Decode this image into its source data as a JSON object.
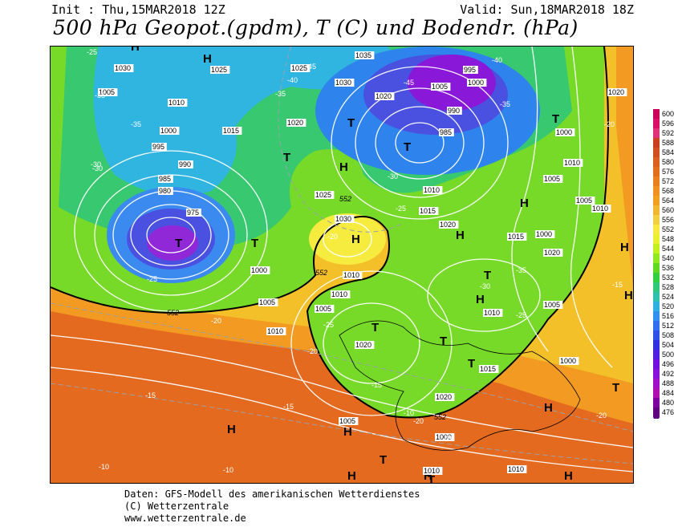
{
  "header": {
    "init": "Init : Thu,15MAR2018 12Z",
    "valid": "Valid: Sun,18MAR2018 18Z",
    "title": "500 hPa Geopot.(gpdm), T (C) und Bodendr. (hPa)"
  },
  "legend": {
    "levels": [
      "600",
      "596",
      "592",
      "588",
      "584",
      "580",
      "576",
      "572",
      "568",
      "564",
      "560",
      "556",
      "552",
      "548",
      "544",
      "540",
      "536",
      "532",
      "528",
      "524",
      "520",
      "516",
      "512",
      "508",
      "504",
      "500",
      "496",
      "492",
      "488",
      "484",
      "480",
      "476"
    ],
    "colors": [
      "#c8005a",
      "#d8106a",
      "#e0307a",
      "#c84020",
      "#d05020",
      "#d86020",
      "#e07020",
      "#e88020",
      "#f09020",
      "#f0a020",
      "#f0b830",
      "#f0d040",
      "#f8e840",
      "#e8f030",
      "#c0f020",
      "#90e820",
      "#60d820",
      "#30d040",
      "#30c878",
      "#30c0b0",
      "#30b0e0",
      "#3090f0",
      "#3070f0",
      "#3050e8",
      "#3030e0",
      "#5020e0",
      "#7010e0",
      "#8810d8",
      "#a010c8",
      "#b010b0",
      "#8000a0",
      "#600080"
    ]
  },
  "map": {
    "highs": [
      "H",
      "H",
      "H",
      "H",
      "H",
      "H",
      "H",
      "H",
      "H",
      "H",
      "H",
      "H",
      "H",
      "H",
      "H"
    ],
    "lows": [
      "T",
      "T",
      "T",
      "T",
      "T",
      "T",
      "T",
      "T",
      "T",
      "T",
      "T",
      "T",
      "T"
    ],
    "pressure_labels": [
      "1030",
      "1025",
      "1010",
      "1005",
      "1000",
      "995",
      "990",
      "985",
      "980",
      "975",
      "1025",
      "1020",
      "1015",
      "1035",
      "1030",
      "1020",
      "1005",
      "1000",
      "995",
      "990",
      "985",
      "1010",
      "1015",
      "1020",
      "1025",
      "1030",
      "1000",
      "1005",
      "1010",
      "1015",
      "1020",
      "1005",
      "1000",
      "1010",
      "1005",
      "1010",
      "1000",
      "1020",
      "1010",
      "1005",
      "1010",
      "1015",
      "1020",
      "1005",
      "1000",
      "1010",
      "1010",
      "1020",
      "1005",
      "1010",
      "1000"
    ],
    "temp_labels": [
      "-25",
      "-35",
      "-35",
      "-30",
      "-30",
      "-25",
      "-20",
      "-15",
      "-10",
      "-10",
      "-45",
      "-40",
      "-35",
      "-45",
      "-40",
      "-35",
      "-30",
      "-25",
      "-20",
      "-25",
      "-20",
      "-15",
      "-10",
      "-20",
      "-15",
      "-10",
      "-30",
      "-35",
      "-25",
      "-20",
      "-15",
      "-20"
    ],
    "geopot_labels": [
      "552",
      "552",
      "552",
      "552"
    ]
  },
  "footer": {
    "line1": "Daten: GFS-Modell des amerikanischen Wetterdienstes",
    "line2": "(C) Wetterzentrale",
    "line3": "www.wetterzentrale.de"
  }
}
